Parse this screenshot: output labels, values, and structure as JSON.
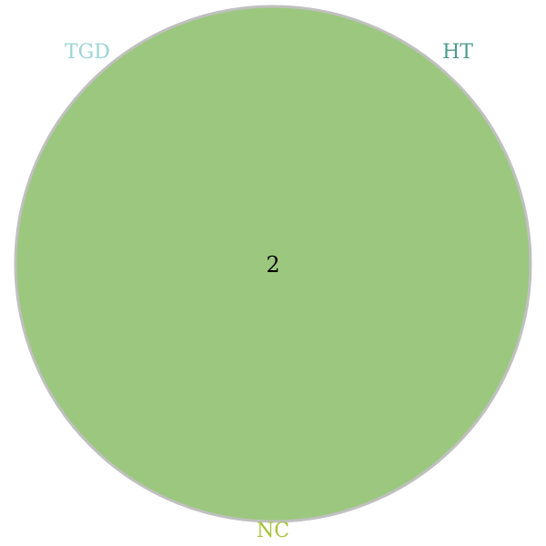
{
  "venn": {
    "sets": [
      {
        "name": "TGD",
        "color": "#9dd4d4"
      },
      {
        "name": "HT",
        "color": "#4e9a8d"
      },
      {
        "name": "NC",
        "color": "#a8c23a"
      }
    ],
    "regions": [
      {
        "sets": [
          "TGD",
          "HT",
          "NC"
        ],
        "count": "2"
      }
    ],
    "fill_color": "#9bc87e",
    "outline_color": "#c0c0c0"
  }
}
